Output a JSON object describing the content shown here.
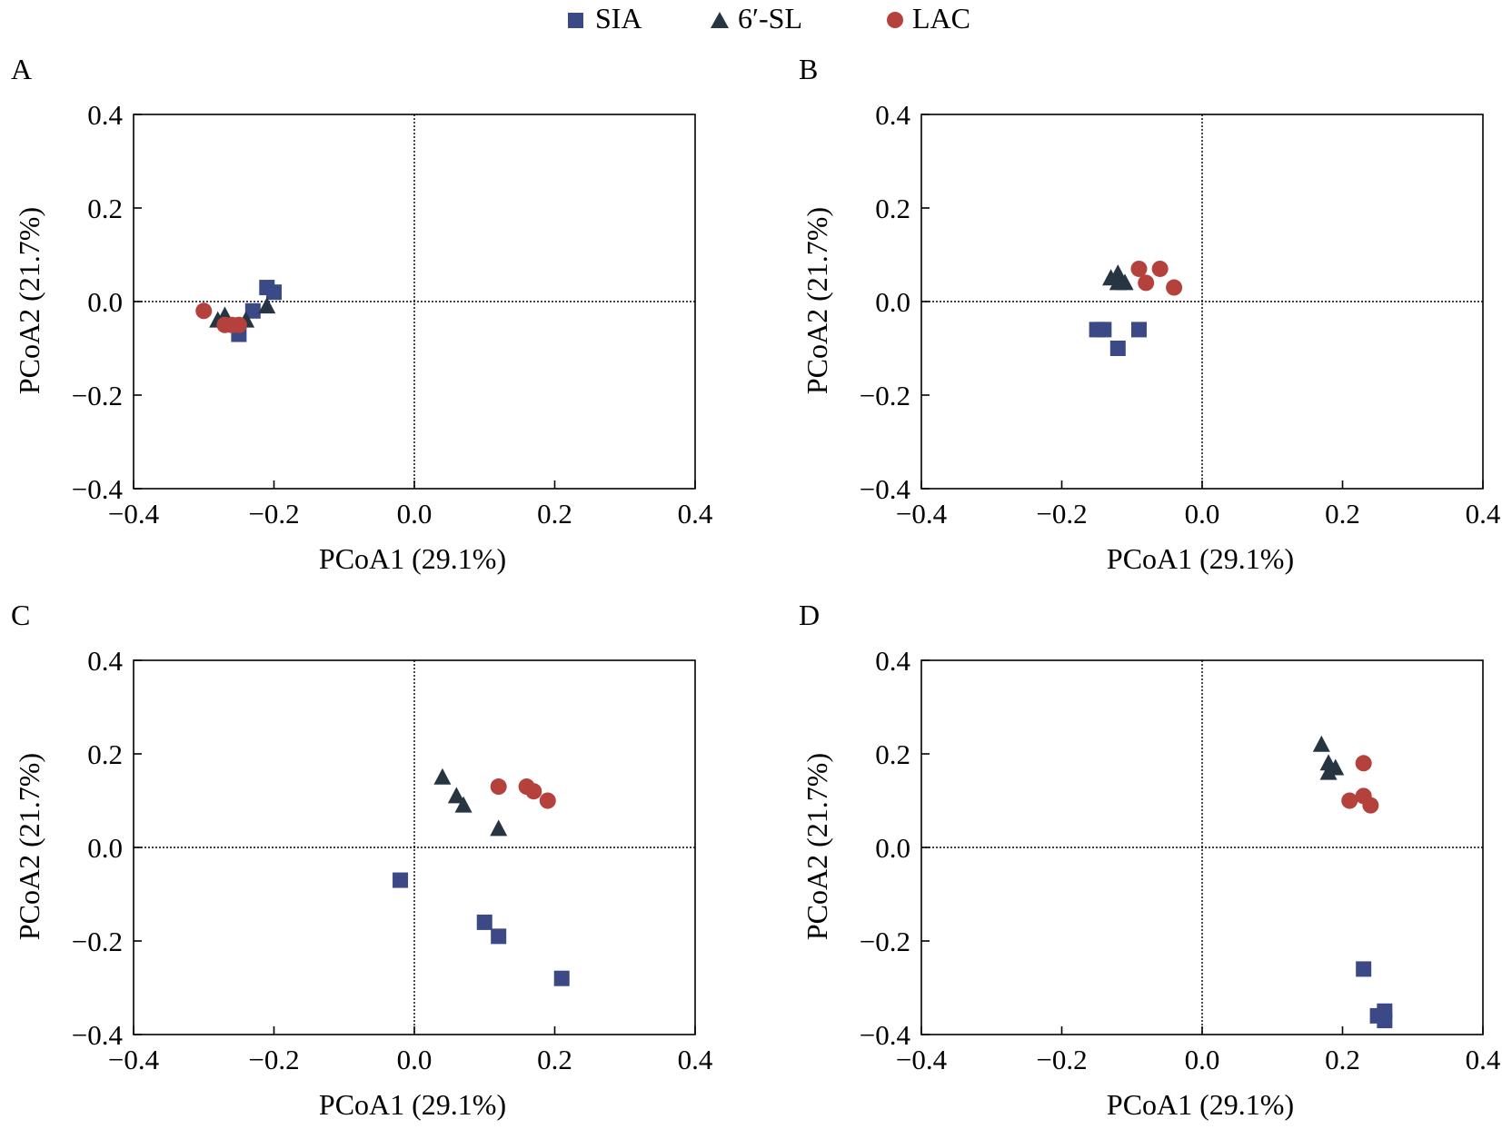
{
  "legend": {
    "placement": "top-center",
    "items": [
      {
        "label": "SIA",
        "marker": "square",
        "color": "#3b4a86"
      },
      {
        "label": "6′-SL",
        "marker": "triangle",
        "color": "#273542"
      },
      {
        "label": "LAC",
        "marker": "circle",
        "color": "#b5413d"
      }
    ]
  },
  "chart_data": [
    {
      "type": "scatter",
      "panel_label": "A",
      "xlabel": "PCoA1 (29.1%)",
      "ylabel": "PCoA2 (21.7%)",
      "xlim": [
        -0.4,
        0.4
      ],
      "ylim": [
        -0.4,
        0.4
      ],
      "xticks": [
        "−0.4",
        "−0.2",
        "0.0",
        "0.2",
        "0.4"
      ],
      "yticks": [
        "−0.4",
        "−0.2",
        "0.0",
        "0.2",
        "0.4"
      ],
      "reference_lines": {
        "x": 0.0,
        "y": 0.0,
        "style": "dotted"
      },
      "grid": false,
      "series": [
        {
          "name": "SIA",
          "points": [
            [
              -0.21,
              0.03
            ],
            [
              -0.2,
              0.02
            ],
            [
              -0.23,
              -0.02
            ],
            [
              -0.25,
              -0.07
            ]
          ]
        },
        {
          "name": "6′-SL",
          "points": [
            [
              -0.28,
              -0.04
            ],
            [
              -0.27,
              -0.03
            ],
            [
              -0.24,
              -0.04
            ],
            [
              -0.21,
              -0.01
            ]
          ]
        },
        {
          "name": "LAC",
          "points": [
            [
              -0.3,
              -0.02
            ],
            [
              -0.27,
              -0.05
            ],
            [
              -0.26,
              -0.05
            ],
            [
              -0.25,
              -0.05
            ]
          ]
        }
      ]
    },
    {
      "type": "scatter",
      "panel_label": "B",
      "xlabel": "PCoA1 (29.1%)",
      "ylabel": "PCoA2 (21.7%)",
      "xlim": [
        -0.4,
        0.4
      ],
      "ylim": [
        -0.4,
        0.4
      ],
      "xticks": [
        "−0.4",
        "−0.2",
        "0.0",
        "0.2",
        "0.4"
      ],
      "yticks": [
        "−0.4",
        "−0.2",
        "0.0",
        "0.2",
        "0.4"
      ],
      "reference_lines": {
        "x": 0.0,
        "y": 0.0,
        "style": "dotted"
      },
      "grid": false,
      "series": [
        {
          "name": "SIA",
          "points": [
            [
              -0.15,
              -0.06
            ],
            [
              -0.14,
              -0.06
            ],
            [
              -0.12,
              -0.1
            ],
            [
              -0.09,
              -0.06
            ]
          ]
        },
        {
          "name": "6′-SL",
          "points": [
            [
              -0.13,
              0.05
            ],
            [
              -0.12,
              0.06
            ],
            [
              -0.11,
              0.04
            ],
            [
              -0.12,
              0.04
            ]
          ]
        },
        {
          "name": "LAC",
          "points": [
            [
              -0.09,
              0.07
            ],
            [
              -0.08,
              0.04
            ],
            [
              -0.06,
              0.07
            ],
            [
              -0.04,
              0.03
            ]
          ]
        }
      ]
    },
    {
      "type": "scatter",
      "panel_label": "C",
      "xlabel": "PCoA1 (29.1%)",
      "ylabel": "PCoA2 (21.7%)",
      "xlim": [
        -0.4,
        0.4
      ],
      "ylim": [
        -0.4,
        0.4
      ],
      "xticks": [
        "−0.4",
        "−0.2",
        "0.0",
        "0.2",
        "0.4"
      ],
      "yticks": [
        "−0.4",
        "−0.2",
        "0.0",
        "0.2",
        "0.4"
      ],
      "reference_lines": {
        "x": 0.0,
        "y": 0.0,
        "style": "dotted"
      },
      "grid": false,
      "series": [
        {
          "name": "SIA",
          "points": [
            [
              -0.02,
              -0.07
            ],
            [
              0.1,
              -0.16
            ],
            [
              0.12,
              -0.19
            ],
            [
              0.21,
              -0.28
            ]
          ]
        },
        {
          "name": "6′-SL",
          "points": [
            [
              0.04,
              0.15
            ],
            [
              0.06,
              0.11
            ],
            [
              0.07,
              0.09
            ],
            [
              0.12,
              0.04
            ]
          ]
        },
        {
          "name": "LAC",
          "points": [
            [
              0.12,
              0.13
            ],
            [
              0.16,
              0.13
            ],
            [
              0.17,
              0.12
            ],
            [
              0.19,
              0.1
            ]
          ]
        }
      ]
    },
    {
      "type": "scatter",
      "panel_label": "D",
      "xlabel": "PCoA1 (29.1%)",
      "ylabel": "PCoA2 (21.7%)",
      "xlim": [
        -0.4,
        0.4
      ],
      "ylim": [
        -0.4,
        0.4
      ],
      "xticks": [
        "−0.4",
        "−0.2",
        "0.0",
        "0.2",
        "0.4"
      ],
      "yticks": [
        "−0.4",
        "−0.2",
        "0.0",
        "0.2",
        "0.4"
      ],
      "reference_lines": {
        "x": 0.0,
        "y": 0.0,
        "style": "dotted"
      },
      "grid": false,
      "series": [
        {
          "name": "SIA",
          "points": [
            [
              0.23,
              -0.26
            ],
            [
              0.25,
              -0.36
            ],
            [
              0.26,
              -0.35
            ],
            [
              0.26,
              -0.37
            ]
          ]
        },
        {
          "name": "6′-SL",
          "points": [
            [
              0.17,
              0.22
            ],
            [
              0.18,
              0.18
            ],
            [
              0.18,
              0.16
            ],
            [
              0.19,
              0.17
            ]
          ]
        },
        {
          "name": "LAC",
          "points": [
            [
              0.23,
              0.18
            ],
            [
              0.21,
              0.1
            ],
            [
              0.23,
              0.11
            ],
            [
              0.24,
              0.09
            ]
          ]
        }
      ]
    }
  ]
}
